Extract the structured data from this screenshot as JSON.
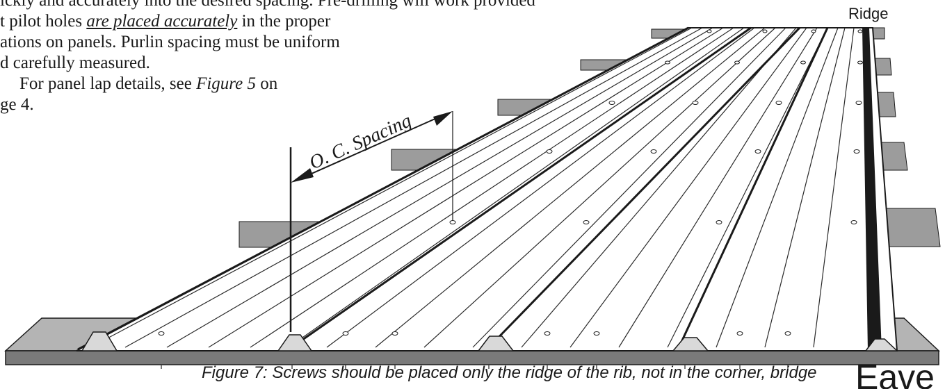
{
  "paragraph": {
    "line1": "ickly and accurately into the desired spacing. Pre-drilling will work provided",
    "line2_pre": "t pilot holes ",
    "line2_emph": "are placed accurately",
    "line2_post": " in the proper",
    "line3": "ations on panels.  Purlin spacing must be uniform",
    "line4": "d carefully measured.",
    "line5_pre": "For panel lap details, see ",
    "line5_fig": "Figure 5",
    "line5_post": " on",
    "line6": "ge 4."
  },
  "figure": {
    "ridge_label": "Ridge",
    "eave_label": "Eave",
    "spacing_label": "O. C. Spacing",
    "caption": "Figure 7:  Screws should be placed only the ridge of the rib, not in the corner, bridge",
    "colors": {
      "purlin_top": "#9c9c9c",
      "purlin_side": "#6e6e6e",
      "panel_fill": "#ffffff",
      "panel_shade": "#d9d9d9",
      "rib_dark": "#2a2a2a",
      "eave_purlin": "#b4b4b4"
    }
  }
}
